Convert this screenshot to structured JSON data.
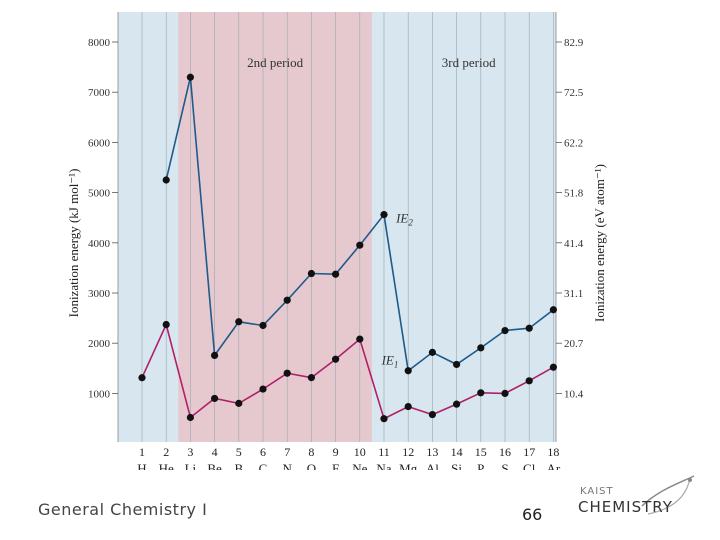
{
  "chart_data": {
    "type": "line",
    "title": "",
    "ylabel_left": "Ionization energy (kJ mol⁻¹)",
    "ylabel_right": "Ionization energy (eV atom⁻¹)",
    "ylim": [
      0,
      8000
    ],
    "yticks_left": [
      1000,
      2000,
      3000,
      4000,
      5000,
      6000,
      7000,
      8000
    ],
    "yticks_right": [
      "10.4",
      "20.7",
      "31.1",
      "41.4",
      "51.8",
      "62.2",
      "72.5",
      "82.9"
    ],
    "x_numbers": [
      "1",
      "2",
      "3",
      "4",
      "5",
      "6",
      "7",
      "8",
      "9",
      "10",
      "11",
      "12",
      "13",
      "14",
      "15",
      "16",
      "17",
      "18"
    ],
    "x_symbols": [
      "H",
      "He",
      "Li",
      "Be",
      "B",
      "C",
      "N",
      "O",
      "F",
      "Ne",
      "Na",
      "Mg",
      "Al",
      "Si",
      "P",
      "S",
      "Cl",
      "Ar"
    ],
    "regions": [
      {
        "label": "2nd period",
        "from": 2.5,
        "to": 10.5,
        "color": "#e6c9cf"
      },
      {
        "label": "3rd period",
        "from": 10.5,
        "to": 18.5,
        "color": ""
      }
    ],
    "background_color": "#d7e6ef",
    "series": [
      {
        "name": "IE1",
        "label_main": "IE",
        "label_sub": "1",
        "color": "#b0206a",
        "x": [
          1,
          2,
          3,
          4,
          5,
          6,
          7,
          8,
          9,
          10,
          11,
          12,
          13,
          14,
          15,
          16,
          17,
          18
        ],
        "values": [
          1312,
          2372,
          520,
          900,
          801,
          1086,
          1402,
          1314,
          1681,
          2081,
          496,
          738,
          578,
          786,
          1012,
          1000,
          1251,
          1521
        ]
      },
      {
        "name": "IE2",
        "label_main": "IE",
        "label_sub": "2",
        "color": "#1f5a8a",
        "x": [
          2,
          3,
          4,
          5,
          6,
          7,
          8,
          9,
          10,
          11,
          12,
          13,
          14,
          15,
          16,
          17,
          18
        ],
        "values": [
          5251,
          7298,
          1757,
          2427,
          2353,
          2856,
          3388,
          3374,
          3952,
          4562,
          1451,
          1817,
          1577,
          1907,
          2252,
          2298,
          2666
        ]
      }
    ]
  },
  "footer": {
    "course": "General Chemistry I",
    "page": "66",
    "logo_top": "KAIST",
    "logo_main": "CHEMISTRY"
  }
}
